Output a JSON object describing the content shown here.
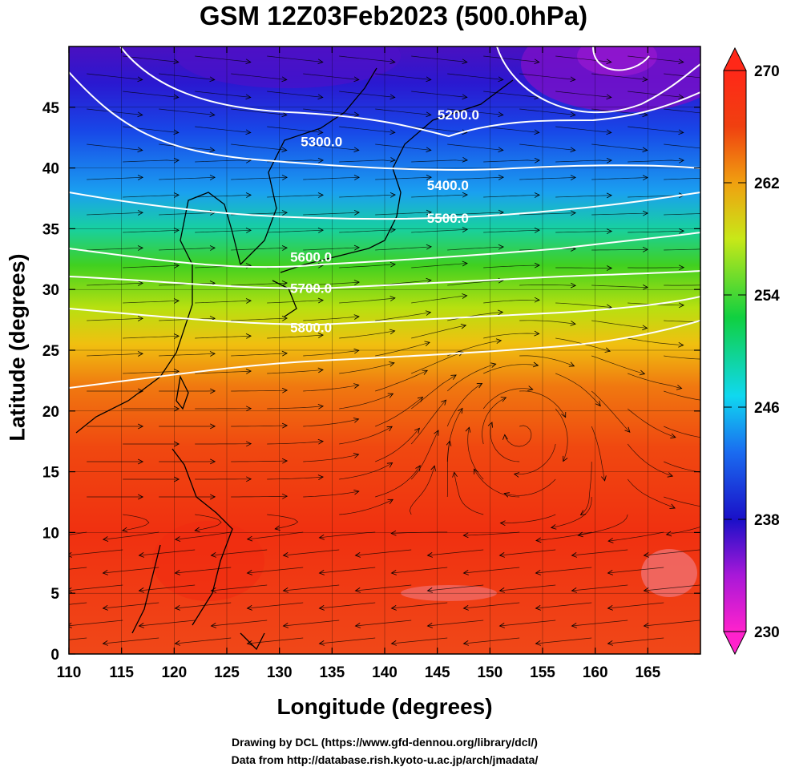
{
  "title": "GSM 12Z03Feb2023 (500.0hPa)",
  "credit_line1": "Drawing by DCL (https://www.gfd-dennou.org/library/dcl/)",
  "credit_line2": "Data from http://database.rish.kyoto-u.ac.jp/arch/jmadata/",
  "colors": {
    "colorbar_stops": [
      "#ff22cc",
      "#8a1ad8",
      "#1a10c8",
      "#1a6cf0",
      "#10d8f0",
      "#10d040",
      "#c8e818",
      "#f0a010",
      "#f04010",
      "#ff2818"
    ],
    "contour_line": "#ffffff",
    "streamline": "#000000"
  },
  "chart_data": {
    "type": "heatmap",
    "title": "GSM 12Z03Feb2023 (500.0hPa)",
    "xlabel": "Longitude (degrees)",
    "ylabel": "Latitude  (degrees)",
    "xlim": [
      110,
      170
    ],
    "ylim": [
      0,
      50
    ],
    "xticks": [
      "110",
      "115",
      "120",
      "125",
      "130",
      "135",
      "140",
      "145",
      "150",
      "155",
      "160",
      "165"
    ],
    "yticks": [
      "0",
      "5",
      "10",
      "15",
      "20",
      "25",
      "30",
      "35",
      "40",
      "45"
    ],
    "grid": true,
    "colorbar": {
      "range": [
        230,
        270
      ],
      "ticks": [
        "230",
        "238",
        "246",
        "254",
        "262",
        "270"
      ],
      "extend": "both"
    },
    "contours": [
      {
        "label": "5200.0",
        "lon": 147,
        "lat": 44.0
      },
      {
        "label": "5300.0",
        "lon": 134,
        "lat": 41.8
      },
      {
        "label": "5400.0",
        "lon": 146,
        "lat": 38.2
      },
      {
        "label": "5500.0",
        "lon": 146,
        "lat": 35.5
      },
      {
        "label": "5600.0",
        "lon": 133,
        "lat": 32.3
      },
      {
        "label": "5700.0",
        "lon": 133,
        "lat": 29.7
      },
      {
        "label": "5800.0",
        "lon": 133,
        "lat": 26.5
      }
    ]
  }
}
